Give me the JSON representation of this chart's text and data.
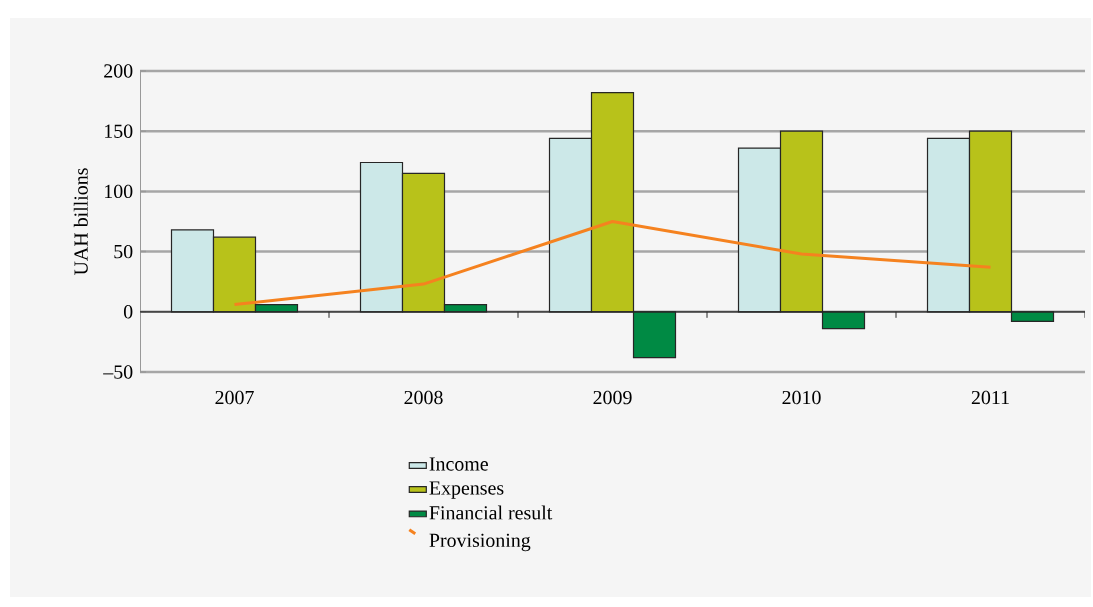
{
  "chart_data": {
    "type": "bar",
    "ylabel": "UAH billions",
    "categories": [
      "2007",
      "2008",
      "2009",
      "2010",
      "2011"
    ],
    "series": [
      {
        "name": "Income",
        "color": "#cce8e8",
        "values": [
          68,
          124,
          144,
          136,
          144
        ]
      },
      {
        "name": "Expenses",
        "color": "#b8c21a",
        "values": [
          62,
          115,
          182,
          150,
          150
        ]
      },
      {
        "name": "Financial result",
        "color": "#008a44",
        "values": [
          6,
          6,
          -38,
          -14,
          -8
        ]
      },
      {
        "name": "Provisioning",
        "type": "line",
        "color": "#f5821f",
        "values": [
          6,
          23,
          75,
          48,
          37
        ]
      }
    ],
    "ylim": [
      -50,
      200
    ],
    "yticks": [
      {
        "value": -50,
        "label": "–50"
      },
      0,
      50,
      100,
      150,
      200
    ],
    "grid": "y",
    "legend": "bottom",
    "marker": "none",
    "line_style": "solid"
  }
}
